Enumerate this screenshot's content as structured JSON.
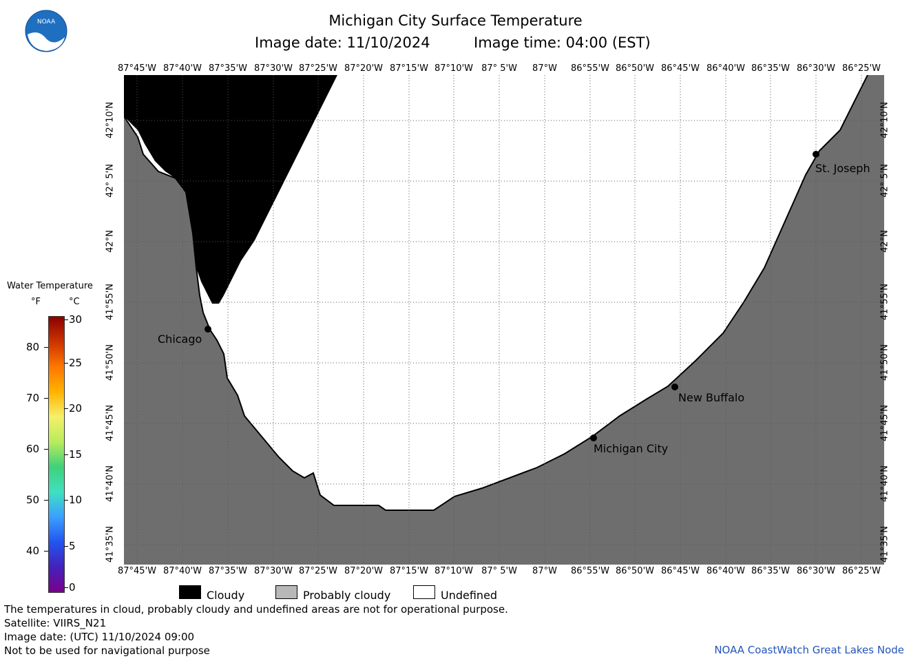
{
  "header": {
    "title": "Michigan City Surface Temperature",
    "image_date": "Image date: 11/10/2024",
    "image_time": "Image time: 04:00 (EST)",
    "logo_text": "NOAA"
  },
  "map": {
    "lon_labels": [
      "87°45'W",
      "87°40'W",
      "87°35'W",
      "87°30'W",
      "87°25'W",
      "87°20'W",
      "87°15'W",
      "87°10'W",
      "87° 5'W",
      "87°W",
      "86°55'W",
      "86°50'W",
      "86°45'W",
      "86°40'W",
      "86°35'W",
      "86°30'W",
      "86°25'W"
    ],
    "lat_labels": [
      "42°10'N",
      "42° 5'N",
      "42°N",
      "41°55'N",
      "41°50'N",
      "41°45'N",
      "41°40'N",
      "41°35'N"
    ],
    "cities": [
      {
        "name": "Chicago"
      },
      {
        "name": "Michigan City"
      },
      {
        "name": "New Buffalo"
      },
      {
        "name": "St. Joseph"
      }
    ],
    "colors": {
      "cloudy": "#000000",
      "probably_cloudy": "#6e6e6e",
      "undefined": "#ffffff",
      "grid": "#555555"
    }
  },
  "legend": {
    "title": "Water Temperature",
    "unit_f": "°F",
    "unit_c": "°C",
    "fahrenheit_ticks": [
      "80",
      "70",
      "60",
      "50",
      "40"
    ],
    "celsius_ticks": [
      "30",
      "25",
      "20",
      "15",
      "10",
      "5",
      "0"
    ],
    "colorbar_colors": [
      "#8b0000",
      "#cc3300",
      "#ff7700",
      "#ffb300",
      "#f5f06a",
      "#b8ec5c",
      "#3fd17a",
      "#40e0c0",
      "#3aa0ff",
      "#2255ee",
      "#4422bb",
      "#7a008a"
    ]
  },
  "key": {
    "cloudy": "Cloudy",
    "probably_cloudy": "Probably cloudy",
    "undefined": "Undefined"
  },
  "footer": {
    "line1": "The temperatures in cloud, probably cloudy and undefined areas are not for operational purpose.",
    "line2": "Satellite: VIIRS_N21",
    "line3": "Image date: (UTC) 11/10/2024  09:00",
    "line4": "Not to be used for navigational purpose",
    "credit": "NOAA CoastWatch Great Lakes Node"
  }
}
